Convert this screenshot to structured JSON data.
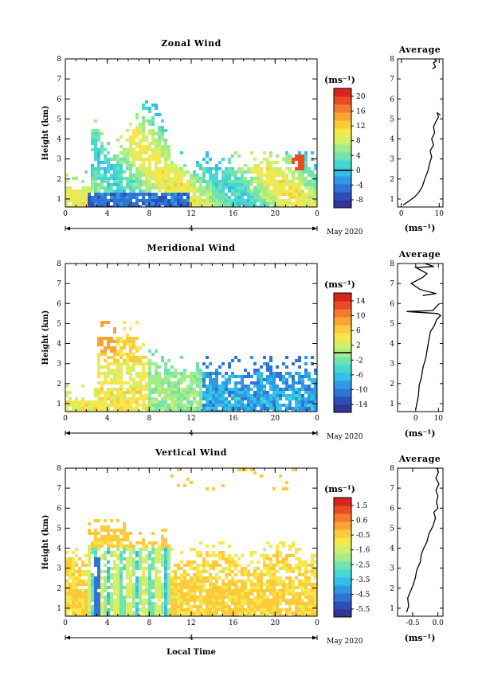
{
  "colors": {
    "scale": [
      "#313695",
      "#2c4fb8",
      "#2f74d6",
      "#2f9ae3",
      "#33bfe8",
      "#48d6d2",
      "#6fe3b0",
      "#a4eb8a",
      "#d2ef6a",
      "#f5e74c",
      "#fbcb3c",
      "#f9a433",
      "#f47b2b",
      "#ea4b25",
      "#d8261f"
    ]
  },
  "chart_data": [
    {
      "type": "heatmap",
      "title": "Zonal Wind",
      "ylabel": "Height (km)",
      "xlabel": "",
      "x_ticks": [
        "0",
        "4",
        "8",
        "12",
        "16",
        "20",
        "0"
      ],
      "xlim": [
        0,
        24
      ],
      "ylim": [
        0.6,
        8
      ],
      "y_ticks": [
        "1",
        "2",
        "3",
        "4",
        "5",
        "6",
        "7",
        "8"
      ],
      "date_day": "4",
      "date_label": "May 2020",
      "colorbar": {
        "unit": "(ms⁻¹)",
        "range": [
          -10,
          22
        ],
        "ticks": [
          "20",
          "16",
          "12",
          "8",
          "4",
          "0",
          "-4",
          "-8"
        ],
        "zero_line": 0
      },
      "profile": {
        "title": "Average",
        "xlabel": "(ms⁻¹)",
        "x_ticks": [
          "0",
          "10"
        ],
        "xlim": [
          -1,
          11
        ],
        "points": [
          [
            0.5,
            0.7
          ],
          [
            2,
            0.9
          ],
          [
            3.5,
            1.1
          ],
          [
            4.5,
            1.3
          ],
          [
            5.5,
            1.6
          ],
          [
            6.2,
            2.0
          ],
          [
            7,
            2.4
          ],
          [
            7.5,
            2.8
          ],
          [
            8,
            3.1
          ],
          [
            7.6,
            3.4
          ],
          [
            8.5,
            3.7
          ],
          [
            8,
            4.0
          ],
          [
            8.8,
            4.3
          ],
          [
            8.5,
            4.6
          ],
          [
            9.2,
            4.9
          ],
          [
            9.8,
            5.1
          ],
          [
            9.5,
            5.3
          ],
          [
            10.3,
            5.2
          ]
        ],
        "points_upper": [
          [
            8.2,
            7.5
          ],
          [
            9,
            7.6
          ],
          [
            8.5,
            7.8
          ],
          [
            9.3,
            7.9
          ],
          [
            8.7,
            8.0
          ]
        ]
      }
    },
    {
      "type": "heatmap",
      "title": "Meridional Wind",
      "ylabel": "Height (km)",
      "xlabel": "",
      "x_ticks": [
        "0",
        "4",
        "8",
        "12",
        "16",
        "20",
        "0"
      ],
      "xlim": [
        0,
        24
      ],
      "ylim": [
        0.6,
        8
      ],
      "y_ticks": [
        "1",
        "2",
        "3",
        "4",
        "5",
        "6",
        "7",
        "8"
      ],
      "date_day": "4",
      "date_label": "May 2020",
      "colorbar": {
        "unit": "(ms⁻¹)",
        "range": [
          -16,
          16
        ],
        "ticks": [
          "14",
          "10",
          "6",
          "2",
          "-2",
          "-6",
          "-10",
          "-14"
        ],
        "zero_line": 0
      },
      "profile": {
        "title": "Average",
        "xlabel": "(ms⁻¹)",
        "x_ticks": [
          "0",
          "10"
        ],
        "xlim": [
          -8,
          12
        ],
        "points": [
          [
            0,
            0.7
          ],
          [
            0.5,
            1.0
          ],
          [
            1.2,
            1.4
          ],
          [
            1.5,
            1.9
          ],
          [
            2.5,
            2.3
          ],
          [
            3.2,
            2.8
          ],
          [
            4.5,
            3.3
          ],
          [
            5.2,
            3.8
          ],
          [
            5.8,
            4.2
          ],
          [
            6.5,
            4.6
          ],
          [
            8.2,
            4.9
          ],
          [
            9.2,
            5.2
          ],
          [
            11,
            5.4
          ],
          [
            9.5,
            5.5
          ],
          [
            -4,
            5.6
          ],
          [
            7.5,
            5.65
          ],
          [
            9.5,
            5.9
          ],
          [
            10.5,
            6.0
          ]
        ],
        "points_upper": [
          [
            3,
            6.4
          ],
          [
            9,
            6.5
          ],
          [
            2,
            6.7
          ],
          [
            -2,
            7.0
          ],
          [
            3,
            7.3
          ],
          [
            5,
            7.5
          ],
          [
            0,
            7.8
          ],
          [
            8,
            7.85
          ],
          [
            4,
            8.0
          ]
        ]
      }
    },
    {
      "type": "heatmap",
      "title": "Vertical Wind",
      "ylabel": "Height (km)",
      "xlabel": "Local Time",
      "x_ticks": [
        "0",
        "4",
        "8",
        "12",
        "16",
        "20",
        "0"
      ],
      "xlim": [
        0,
        24
      ],
      "ylim": [
        0.6,
        8
      ],
      "y_ticks": [
        "1",
        "2",
        "3",
        "4",
        "5",
        "6",
        "7",
        "8"
      ],
      "date_day": "4",
      "date_label": "May 2020",
      "colorbar": {
        "unit": "(ms⁻¹)",
        "range": [
          -6,
          2
        ],
        "ticks": [
          "1.5",
          "0.6",
          "-0.5",
          "-1.6",
          "-2.5",
          "-3.5",
          "-4.5",
          "-5.5"
        ],
        "zero_line": null
      },
      "profile": {
        "title": "Average",
        "xlabel": "(ms⁻¹)",
        "x_ticks": [
          "-0.5",
          "0.0"
        ],
        "xlim": [
          -0.8,
          0.1
        ],
        "points": [
          [
            -0.62,
            0.8
          ],
          [
            -0.58,
            1.1
          ],
          [
            -0.6,
            1.5
          ],
          [
            -0.55,
            1.8
          ],
          [
            -0.5,
            2.1
          ],
          [
            -0.45,
            2.5
          ],
          [
            -0.42,
            2.9
          ],
          [
            -0.35,
            3.3
          ],
          [
            -0.33,
            3.7
          ],
          [
            -0.28,
            4.0
          ],
          [
            -0.22,
            4.3
          ],
          [
            -0.18,
            4.7
          ],
          [
            -0.1,
            5.1
          ],
          [
            -0.05,
            5.5
          ],
          [
            -0.08,
            5.8
          ],
          [
            0.0,
            6.0
          ],
          [
            -0.03,
            6.3
          ],
          [
            0.0,
            6.6
          ],
          [
            -0.04,
            6.9
          ],
          [
            0.02,
            7.2
          ],
          [
            -0.04,
            7.5
          ],
          [
            0.01,
            7.8
          ],
          [
            -0.02,
            8.0
          ]
        ]
      }
    }
  ]
}
